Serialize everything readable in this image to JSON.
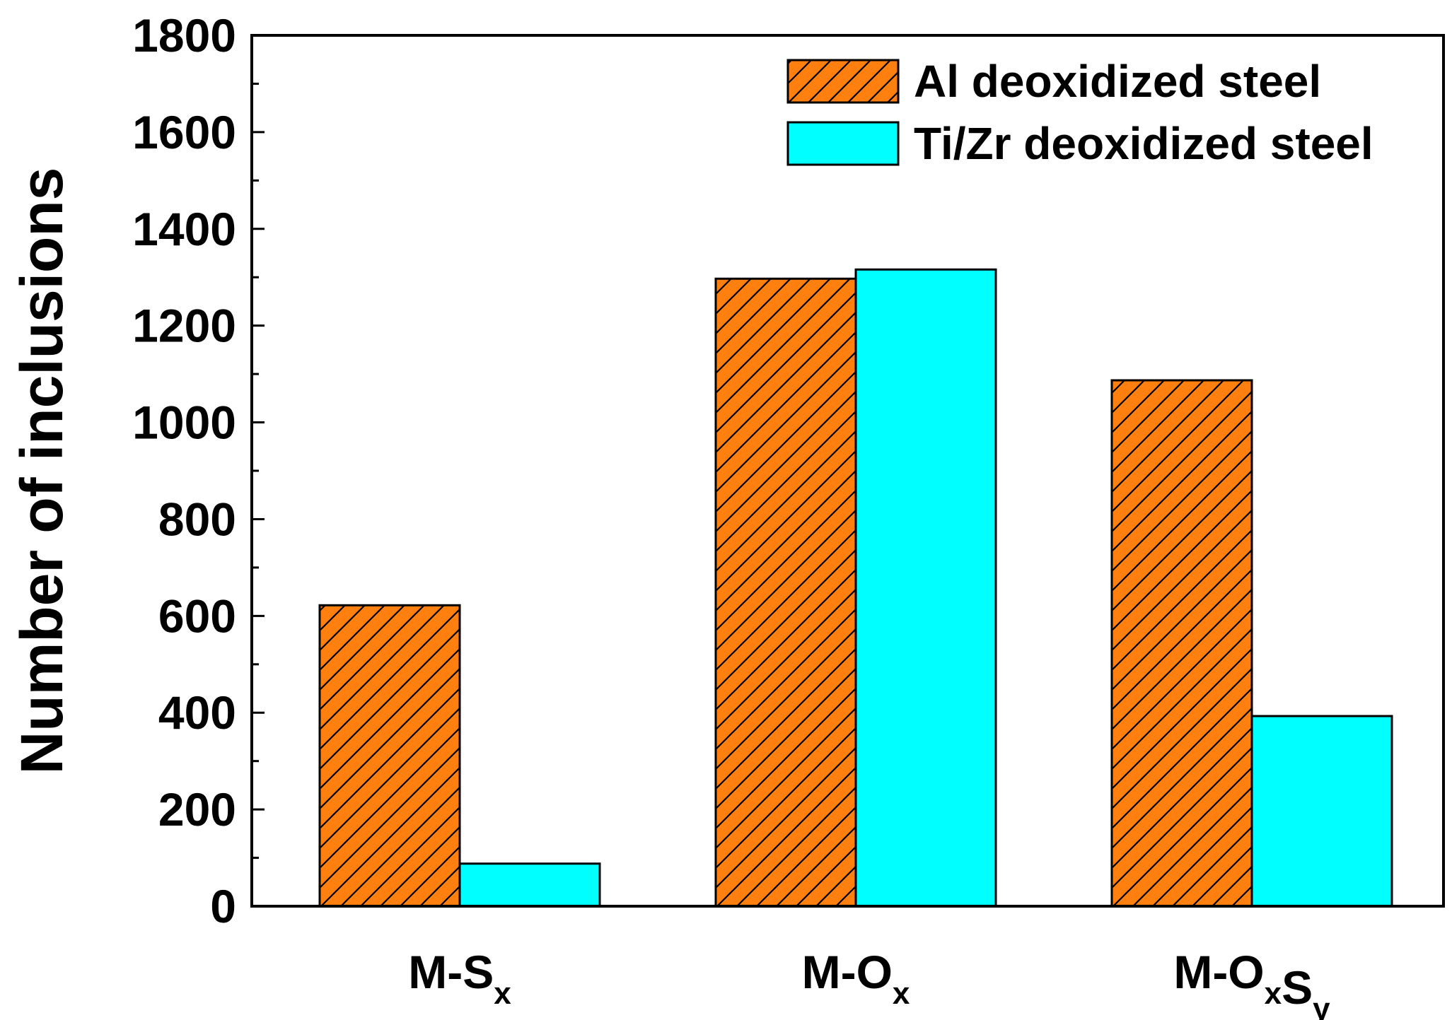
{
  "chart_data": {
    "type": "bar",
    "title": "",
    "xlabel": "",
    "ylabel": "Number of inclusions",
    "ylim": [
      0,
      1800
    ],
    "yticks": [
      0,
      200,
      400,
      600,
      800,
      1000,
      1200,
      1400,
      1600,
      1800
    ],
    "categories": [
      {
        "main": "M-S",
        "parts": [
          {
            "text": "M-S",
            "sub": false
          },
          {
            "text": "x",
            "sub": true
          }
        ]
      },
      {
        "main": "M-O",
        "parts": [
          {
            "text": "M-O",
            "sub": false
          },
          {
            "text": "x",
            "sub": true
          }
        ]
      },
      {
        "main": "M-OS",
        "parts": [
          {
            "text": "M-O",
            "sub": false
          },
          {
            "text": "x",
            "sub": true
          },
          {
            "text": "S",
            "sub": false
          },
          {
            "text": "y",
            "sub": true
          }
        ]
      }
    ],
    "series": [
      {
        "name": "Al deoxidized steel",
        "values": [
          622,
          1297,
          1087
        ],
        "color": "#ff7f0f",
        "pattern": "hatch"
      },
      {
        "name": "Ti/Zr deoxidized steel",
        "values": [
          88,
          1316,
          393
        ],
        "color": "#00ffff",
        "pattern": "solid"
      }
    ],
    "legend_position": "top-right",
    "grid": false
  }
}
